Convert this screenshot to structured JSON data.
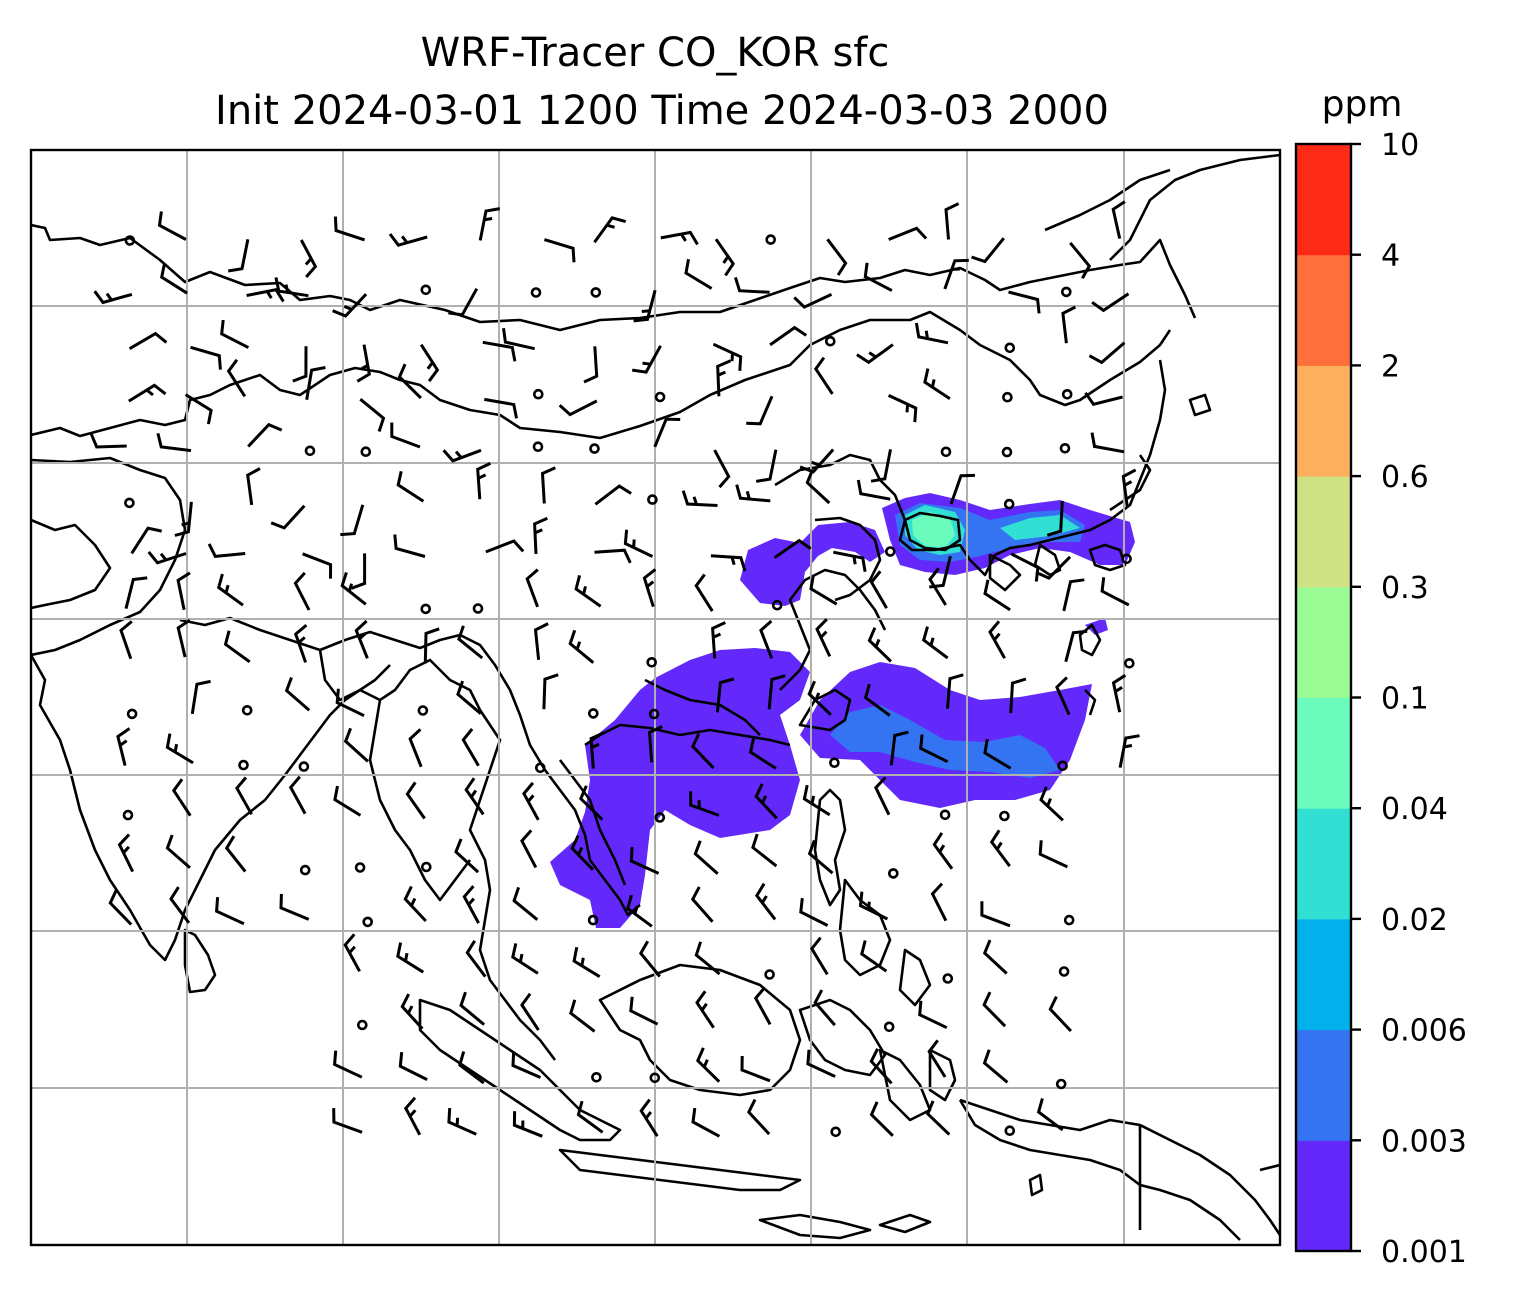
{
  "title": {
    "line1": "WRF-Tracer CO_KOR sfc",
    "line2": "Init 2024-03-01 1200 Time 2024-03-03 2000"
  },
  "colorbar": {
    "unit_label": "ppm",
    "ticks": [
      "0.001",
      "0.003",
      "0.006",
      "0.02",
      "0.04",
      "0.1",
      "0.3",
      "0.6",
      "2",
      "4",
      "10"
    ],
    "colors": [
      "#6229fa",
      "#3474f3",
      "#02b1ec",
      "#31e0d3",
      "#6bfbbd",
      "#9afb95",
      "#cfe283",
      "#fcb05e",
      "#fe6f3c",
      "#fd2a17"
    ]
  },
  "map": {
    "gridline_color": "#b0b0b0",
    "coastline_color": "#000000",
    "wind_barb_color": "#000000",
    "plume_low_color": "#6229fa",
    "plume_mid_color": "#3474f3",
    "plume_high_color": "#6bfbbd"
  }
}
